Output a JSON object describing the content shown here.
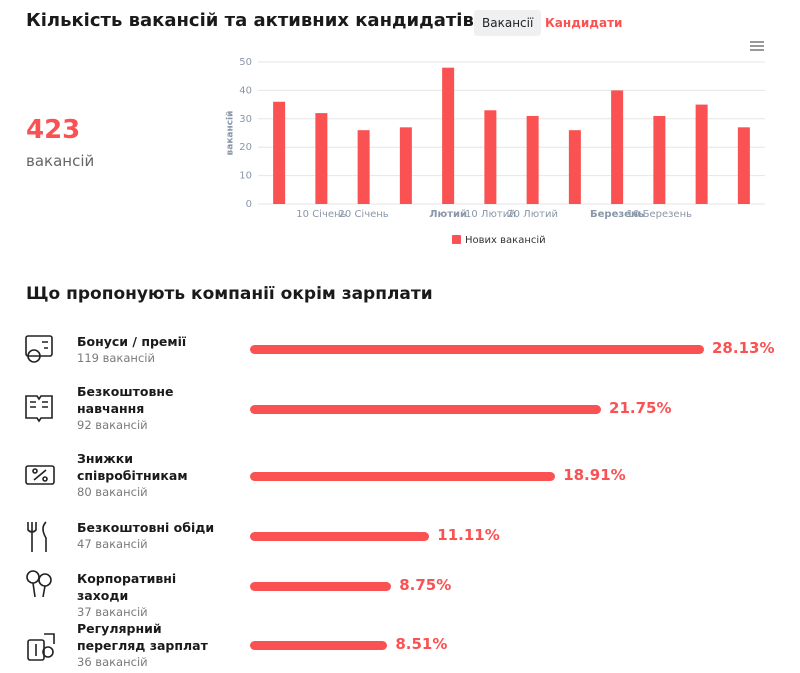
{
  "header": {
    "title": "Кількість вакансій та активних кандидатів",
    "tabs": [
      "Вакансії",
      "Кандидати"
    ]
  },
  "summary": {
    "value": 423,
    "label": "вакансій"
  },
  "chart_data": {
    "type": "bar",
    "y_label": "вакансій",
    "categories": [
      null,
      "10 Січень",
      "20 Січень",
      null,
      "Лютий",
      "10 Лютий",
      "20 Лютий",
      null,
      "Березень",
      "10 Березень",
      null,
      null
    ],
    "series": [
      {
        "name": "Нових вакансій",
        "color": "#fa5252",
        "values": [
          36,
          32,
          26,
          27,
          48,
          33,
          31,
          26,
          40,
          31,
          35,
          27
        ]
      }
    ],
    "ylim": [
      0,
      50
    ],
    "yticks": [
      0,
      10,
      20,
      30,
      40,
      50
    ],
    "grid": true
  },
  "benefits": {
    "title": "Що пропонують компанії окрім зарплати",
    "color": "#fa5252",
    "items": [
      {
        "name": "Бонуси / премії",
        "count_label": "119 вакансій",
        "percent": 28.13,
        "percent_label": "28.13%"
      },
      {
        "name": "Безкоштовне навчання",
        "count_label": "92 вакансій",
        "percent": 21.75,
        "percent_label": "21.75%"
      },
      {
        "name": "Знижки співробітникам",
        "count_label": "80 вакансій",
        "percent": 18.91,
        "percent_label": "18.91%"
      },
      {
        "name": "Безкоштовні обіди",
        "count_label": "47 вакансій",
        "percent": 11.11,
        "percent_label": "11.11%"
      },
      {
        "name": "Корпоративні заходи",
        "count_label": "37 вакансій",
        "percent": 8.75,
        "percent_label": "8.75%"
      },
      {
        "name": "Регулярний перегляд зарплат",
        "count_label": "36 вакансій",
        "percent": 8.51,
        "percent_label": "8.51%"
      }
    ]
  }
}
